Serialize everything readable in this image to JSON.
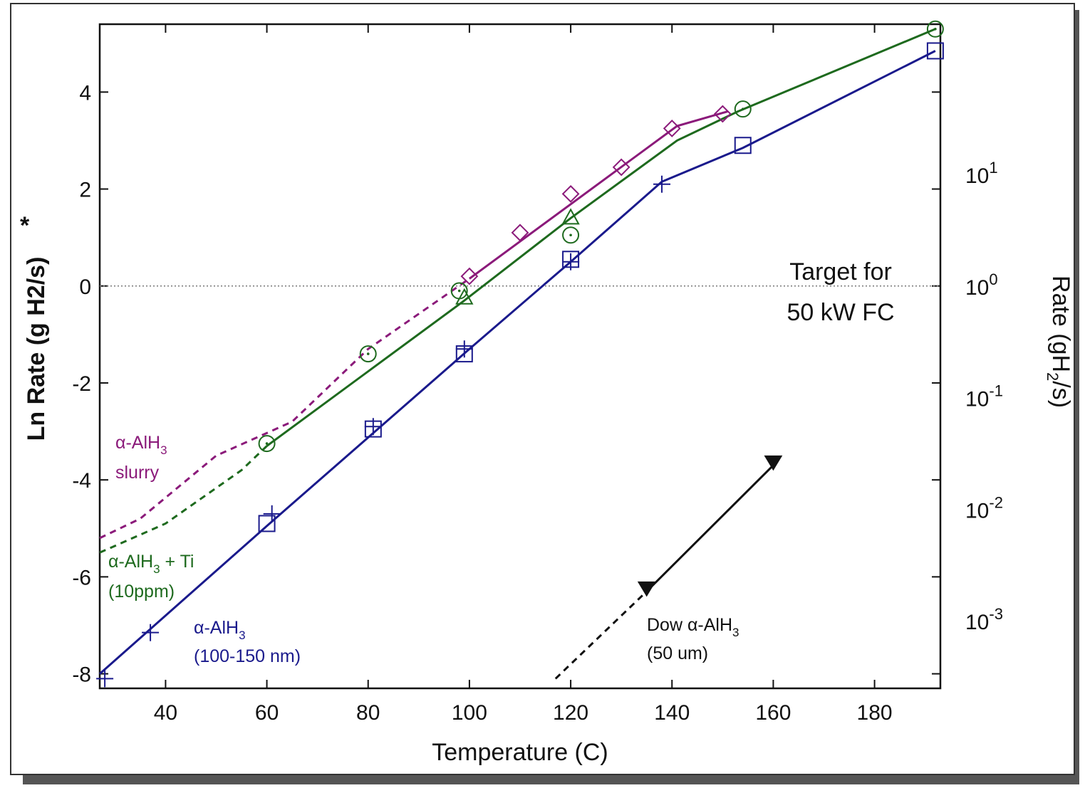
{
  "chart_data": {
    "type": "line",
    "xlabel": "Temperature (C)",
    "ylabel": "Ln Rate (g H2/s)",
    "ylabel_marker": "*",
    "y2label_parts": [
      "Rate (gH",
      "2",
      "/s)"
    ],
    "xlim": [
      27,
      193
    ],
    "ylim": [
      -8.3,
      5.4
    ],
    "x_ticks": [
      40,
      60,
      80,
      100,
      120,
      140,
      160,
      180
    ],
    "y_ticks": [
      -8,
      -6,
      -4,
      -2,
      0,
      2,
      4
    ],
    "y2_ticks": [
      {
        "base": "10",
        "exp": "1",
        "value": 2.303
      },
      {
        "base": "10",
        "exp": "0",
        "value": 0
      },
      {
        "base": "10",
        "exp": "-1",
        "value": -2.303
      },
      {
        "base": "10",
        "exp": "-2",
        "value": -4.605
      },
      {
        "base": "10",
        "exp": "-3",
        "value": -6.908
      }
    ],
    "reference_line": {
      "y": 0,
      "label_lines": [
        "Target for",
        "50 kW FC"
      ]
    },
    "series": [
      {
        "color": "#8b1a7a",
        "marker": "diamond",
        "label_lines": [
          [
            "α-AlH",
            "3",
            ""
          ],
          [
            "slurry",
            "",
            ""
          ]
        ],
        "extrapolated": [
          [
            27,
            -5.2
          ],
          [
            35,
            -4.8
          ],
          [
            50,
            -3.5
          ],
          [
            65,
            -2.8
          ],
          [
            80,
            -1.3
          ],
          [
            100,
            0.15
          ]
        ],
        "fit": [
          [
            100,
            0.15
          ],
          [
            141,
            3.3
          ],
          [
            151,
            3.6
          ]
        ],
        "points": [
          [
            100,
            0.2
          ],
          [
            110,
            1.1
          ],
          [
            120,
            1.9
          ],
          [
            130,
            2.45
          ],
          [
            140,
            3.25
          ],
          [
            150,
            3.55
          ]
        ]
      },
      {
        "color": "#1e6a1e",
        "marker": "circle-dot",
        "label_lines": [
          [
            "α-AlH",
            "3",
            " + Ti"
          ],
          [
            "(10ppm)",
            "",
            ""
          ]
        ],
        "extrapolated": [
          [
            27,
            -5.5
          ],
          [
            40,
            -4.9
          ],
          [
            55,
            -3.8
          ],
          [
            60,
            -3.3
          ]
        ],
        "fit": [
          [
            60,
            -3.3
          ],
          [
            99,
            -0.3
          ],
          [
            120,
            1.4
          ],
          [
            141,
            3.0
          ],
          [
            153,
            3.6
          ],
          [
            192,
            5.3
          ]
        ],
        "points": [
          [
            60,
            -3.25
          ],
          [
            80,
            -1.4
          ],
          [
            98,
            -0.1
          ],
          [
            120,
            1.05
          ],
          [
            154,
            3.65
          ],
          [
            192,
            5.3
          ]
        ]
      },
      {
        "color": "#1e6a1e",
        "marker": "triangle",
        "points": [
          [
            99,
            -0.25
          ],
          [
            120,
            1.4
          ]
        ]
      },
      {
        "color": "#1a1a8c",
        "marker": "square",
        "label_lines": [
          [
            "α-AlH",
            "3",
            ""
          ],
          [
            "(100-150 nm)",
            "",
            ""
          ]
        ],
        "fit": [
          [
            27,
            -8.0
          ],
          [
            60,
            -4.95
          ],
          [
            100,
            -1.3
          ],
          [
            120,
            0.5
          ],
          [
            138,
            2.15
          ],
          [
            154,
            2.85
          ],
          [
            192,
            4.85
          ]
        ],
        "points": [
          [
            60,
            -4.9
          ],
          [
            81,
            -2.95
          ],
          [
            99,
            -1.4
          ],
          [
            120,
            0.55
          ],
          [
            154,
            2.9
          ],
          [
            192,
            4.85
          ]
        ]
      },
      {
        "color": "#1a1a8c",
        "marker": "plus",
        "points": [
          [
            28,
            -8.1
          ],
          [
            37,
            -7.15
          ],
          [
            61,
            -4.7
          ],
          [
            81,
            -2.9
          ],
          [
            99,
            -1.3
          ],
          [
            120,
            0.5
          ],
          [
            138,
            2.1
          ]
        ]
      },
      {
        "color": "#111111",
        "marker": "triangle-down",
        "label_lines": [
          [
            "Dow α-AlH",
            "3",
            ""
          ],
          [
            "(50 um)",
            "",
            ""
          ]
        ],
        "extrapolated": [
          [
            117,
            -8.1
          ],
          [
            135,
            -6.3
          ]
        ],
        "fit": [
          [
            135,
            -6.3
          ],
          [
            160,
            -3.7
          ]
        ],
        "points": [
          [
            135,
            -6.25
          ],
          [
            160,
            -3.65
          ]
        ]
      }
    ]
  }
}
